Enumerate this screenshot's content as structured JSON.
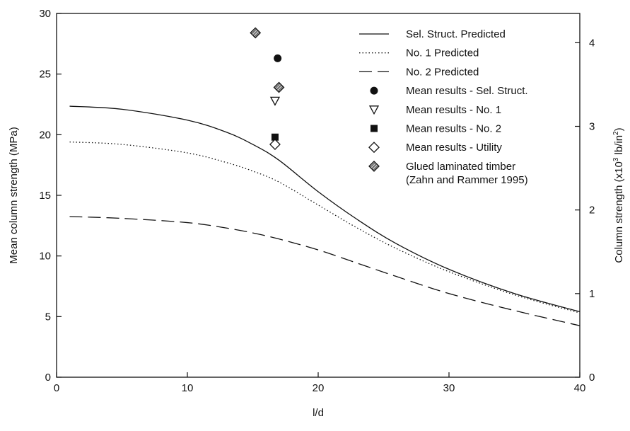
{
  "chart_data": {
    "type": "line",
    "title": "",
    "xlabel": "l/d",
    "ylabel": "Mean column strength (MPa)",
    "y2label": {
      "base": "Column strength (x10",
      "sup1": "3",
      "mid": " lb/in",
      "sup2": "2",
      "end": ")"
    },
    "xlim": [
      0,
      40
    ],
    "ylim": [
      0,
      30
    ],
    "y2lim_display": [
      0,
      4.35
    ],
    "xticks": [
      "0",
      "10",
      "20",
      "30",
      "40"
    ],
    "yticks": [
      "0",
      "5",
      "10",
      "15",
      "20",
      "25",
      "30"
    ],
    "y2ticks": [
      "0",
      "1",
      "2",
      "3",
      "4"
    ],
    "grid": false,
    "legend_position": "top-right",
    "series": [
      {
        "name": "Sel. Struct. Predicted",
        "style": "solid",
        "x": [
          1,
          5,
          10,
          13,
          15,
          17,
          20,
          23,
          26,
          30,
          35,
          40
        ],
        "y": [
          22.35,
          22.1,
          21.2,
          20.2,
          19.2,
          17.9,
          15.3,
          13.0,
          11.0,
          8.9,
          6.9,
          5.4
        ]
      },
      {
        "name": "No. 1 Predicted",
        "style": "dotted",
        "x": [
          1,
          5,
          10,
          13,
          15,
          17,
          20,
          23,
          26,
          30,
          35,
          40
        ],
        "y": [
          19.4,
          19.2,
          18.5,
          17.7,
          17.0,
          16.1,
          14.2,
          12.3,
          10.6,
          8.7,
          6.8,
          5.3
        ]
      },
      {
        "name": "No. 2 Predicted",
        "style": "dashed",
        "x": [
          1,
          5,
          10,
          13,
          15,
          17,
          20,
          23,
          26,
          30,
          35,
          40
        ],
        "y": [
          13.25,
          13.1,
          12.75,
          12.3,
          11.9,
          11.4,
          10.5,
          9.4,
          8.3,
          6.9,
          5.5,
          4.25
        ]
      },
      {
        "name": "Mean results - Sel. Struct.",
        "marker": "filled-circle",
        "x": [
          16.9
        ],
        "y": [
          26.3
        ]
      },
      {
        "name": "Mean results - No. 1",
        "marker": "open-triangle-down",
        "x": [
          16.7
        ],
        "y": [
          22.8
        ]
      },
      {
        "name": "Mean results - No. 2",
        "marker": "filled-square",
        "x": [
          16.7
        ],
        "y": [
          19.8
        ]
      },
      {
        "name": "Mean results - Utility",
        "marker": "open-diamond",
        "x": [
          16.7
        ],
        "y": [
          19.2
        ]
      },
      {
        "name": "Glued laminated timber",
        "name_line2": "(Zahn and Rammer 1995)",
        "marker": "hatched-diamond",
        "x": [
          15.2,
          17.0
        ],
        "y": [
          28.4,
          23.9
        ]
      }
    ]
  }
}
